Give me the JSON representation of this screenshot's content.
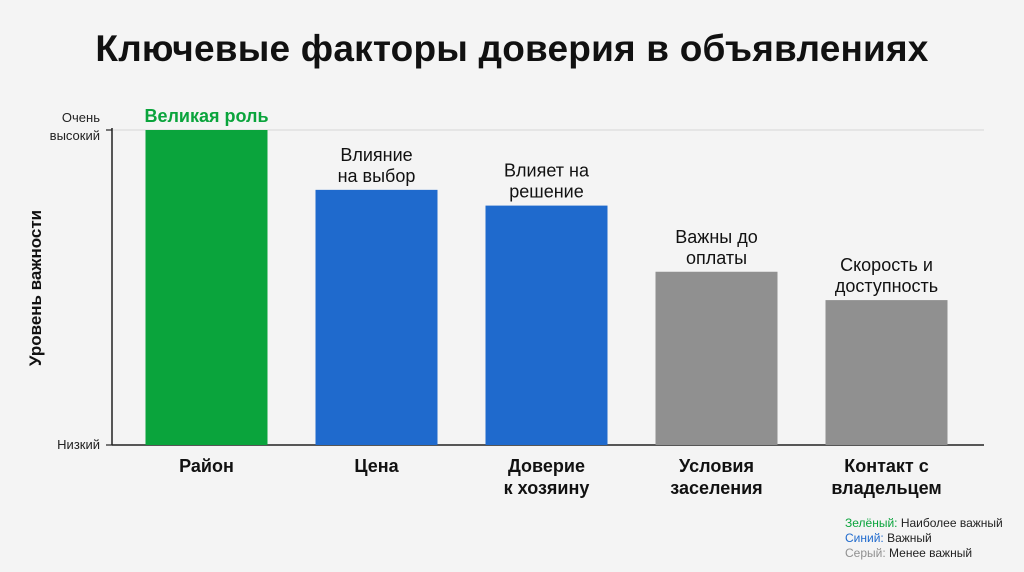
{
  "chart_data": {
    "type": "bar",
    "title": "Ключевые факторы доверия в объявлениях",
    "ylabel": "Уровень важности",
    "yticks": [
      {
        "value": 0,
        "label": "Низкий"
      },
      {
        "value": 100,
        "label": "Очень высокий"
      }
    ],
    "ylim": [
      0,
      100
    ],
    "grid": false,
    "categories": [
      "Район",
      "Цена",
      "Доверие к хозяину",
      "Условия заселения",
      "Контакт с владельцем"
    ],
    "values": [
      100,
      81,
      76,
      55,
      46
    ],
    "data_labels": [
      "Великая роль",
      "Влияние на выбор",
      "Влияет на решение",
      "Важны до оплаты",
      "Скорость и доступность"
    ],
    "colors": [
      "#0aa43c",
      "#1f6acd",
      "#1f6acd",
      "#909090",
      "#909090"
    ],
    "legend": {
      "placement": "bottom-right",
      "entries": [
        {
          "key": "Зелёный:",
          "desc": "Наиболее важный",
          "color": "#0aa43c"
        },
        {
          "key": "Синий:",
          "desc": "Важный",
          "color": "#1f6acd"
        },
        {
          "key": "Серый:",
          "desc": "Менее важный",
          "color": "#909090"
        }
      ]
    }
  }
}
